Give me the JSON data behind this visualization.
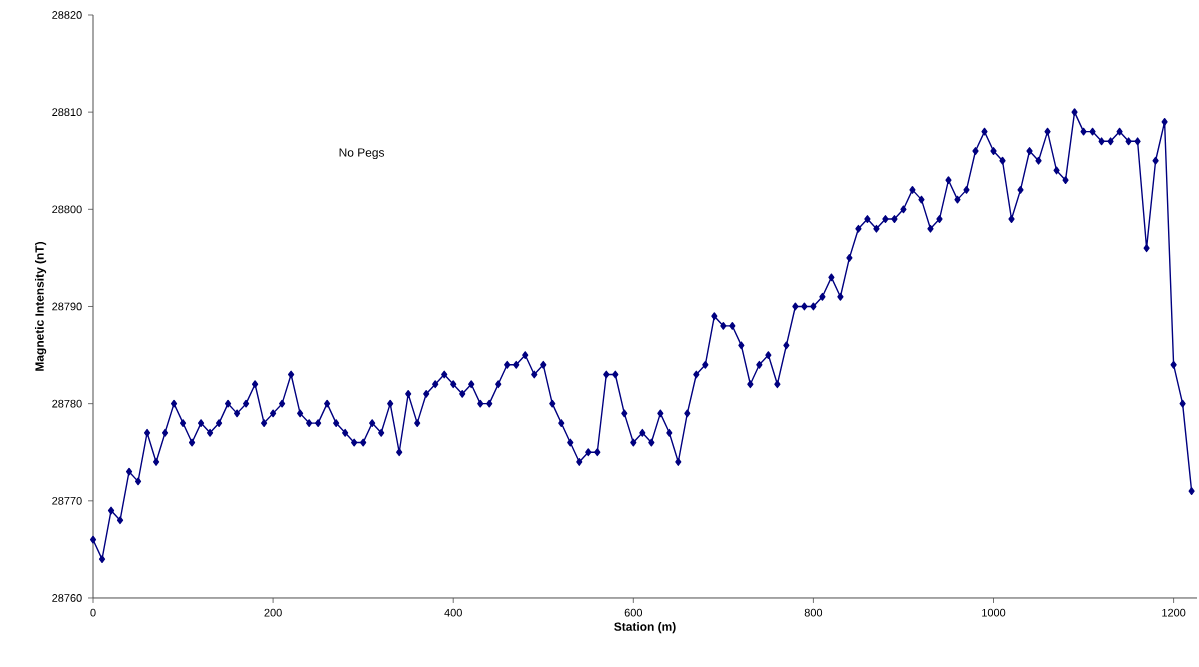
{
  "chart_data": {
    "type": "line",
    "xlabel": "Station (m)",
    "ylabel": "Magnetic Intensity (nT)",
    "annotations": [
      "No Pegs"
    ],
    "x": [
      0,
      10,
      20,
      30,
      40,
      50,
      60,
      70,
      80,
      90,
      100,
      110,
      120,
      130,
      140,
      150,
      160,
      170,
      180,
      190,
      200,
      210,
      220,
      230,
      240,
      250,
      260,
      270,
      280,
      290,
      300,
      310,
      320,
      330,
      340,
      350,
      360,
      370,
      380,
      390,
      400,
      410,
      420,
      430,
      440,
      450,
      460,
      470,
      480,
      490,
      500,
      510,
      520,
      530,
      540,
      550,
      560,
      570,
      580,
      590,
      600,
      610,
      620,
      630,
      640,
      650,
      660,
      670,
      680,
      690,
      700,
      710,
      720,
      730,
      740,
      750,
      760,
      770,
      780,
      790,
      800,
      810,
      820,
      830,
      840,
      850,
      860,
      870,
      880,
      890,
      900,
      910,
      920,
      930,
      940,
      950,
      960,
      970,
      980,
      990,
      1000,
      1010,
      1020,
      1030,
      1040,
      1050,
      1060,
      1070,
      1080,
      1090,
      1100,
      1110,
      1120,
      1130,
      1140,
      1150,
      1160,
      1170,
      1180,
      1190,
      1200,
      1210,
      1220
    ],
    "series": [
      {
        "color": "#000080",
        "values": [
          28766,
          28764,
          28769,
          28768,
          28773,
          28772,
          28777,
          28774,
          28777,
          28780,
          28778,
          28776,
          28778,
          28777,
          28778,
          28780,
          28779,
          28780,
          28782,
          28778,
          28779,
          28780,
          28783,
          28779,
          28778,
          28778,
          28780,
          28778,
          28777,
          28776,
          28776,
          28778,
          28777,
          28780,
          28775,
          28781,
          28778,
          28781,
          28782,
          28783,
          28782,
          28781,
          28782,
          28780,
          28780,
          28782,
          28784,
          28784,
          28785,
          28783,
          28784,
          28780,
          28778,
          28776,
          28774,
          28775,
          28775,
          28783,
          28783,
          28779,
          28776,
          28777,
          28776,
          28779,
          28777,
          28774,
          28779,
          28783,
          28784,
          28789,
          28788,
          28788,
          28786,
          28782,
          28784,
          28785,
          28782,
          28786,
          28790,
          28790,
          28790,
          28791,
          28793,
          28791,
          28795,
          28798,
          28799,
          28798,
          28799,
          28799,
          28800,
          28802,
          28801,
          28798,
          28799,
          28803,
          28801,
          28802,
          28806,
          28808,
          28806,
          28805,
          28799,
          28802,
          28806,
          28805,
          28808,
          28804,
          28803,
          28810,
          28808,
          28808,
          28807,
          28807,
          28808,
          28807,
          28807,
          28796,
          28805,
          28809,
          28784,
          28780,
          28771
        ]
      }
    ],
    "xlim": [
      0,
      1226
    ],
    "ylim": [
      28760,
      28820
    ],
    "xticks": [
      0,
      200,
      400,
      600,
      800,
      1000,
      1200
    ],
    "yticks": [
      28760,
      28770,
      28780,
      28790,
      28800,
      28810,
      28820
    ],
    "marker": "diamond",
    "line_style": "solid"
  }
}
